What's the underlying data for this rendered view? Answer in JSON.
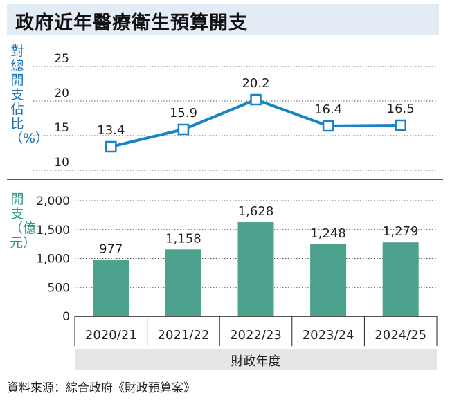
{
  "title": "政府近年醫療衛生預算開支",
  "source": "資料來源：綜合政府《財政預算案》",
  "xlabel": "財政年度",
  "chart_data": [
    {
      "type": "line",
      "ylabel": "對總開支佔比（%）",
      "ylim": [
        10,
        25
      ],
      "yticks": [
        10,
        15,
        20,
        25
      ],
      "categories": [
        "2020/21",
        "2021/22",
        "2022/23",
        "2023/24",
        "2024/25"
      ],
      "values": [
        13.4,
        15.9,
        20.2,
        16.4,
        16.5
      ],
      "value_labels": [
        "13.4",
        "15.9",
        "20.2",
        "16.4",
        "16.5"
      ],
      "color": "#1a82c8",
      "grid": true
    },
    {
      "type": "bar",
      "ylabel": "開支（億元）",
      "ylim": [
        0,
        2000
      ],
      "yticks": [
        0,
        500,
        1000,
        1500,
        2000
      ],
      "ytick_labels": [
        "0",
        "500",
        "1,000",
        "1,500",
        "2,000"
      ],
      "categories": [
        "2020/21",
        "2021/22",
        "2022/23",
        "2023/24",
        "2024/25"
      ],
      "values": [
        977,
        1158,
        1628,
        1248,
        1279
      ],
      "value_labels": [
        "977",
        "1,158",
        "1,628",
        "1,248",
        "1,279"
      ],
      "color": "#4da28e",
      "grid": true
    }
  ]
}
